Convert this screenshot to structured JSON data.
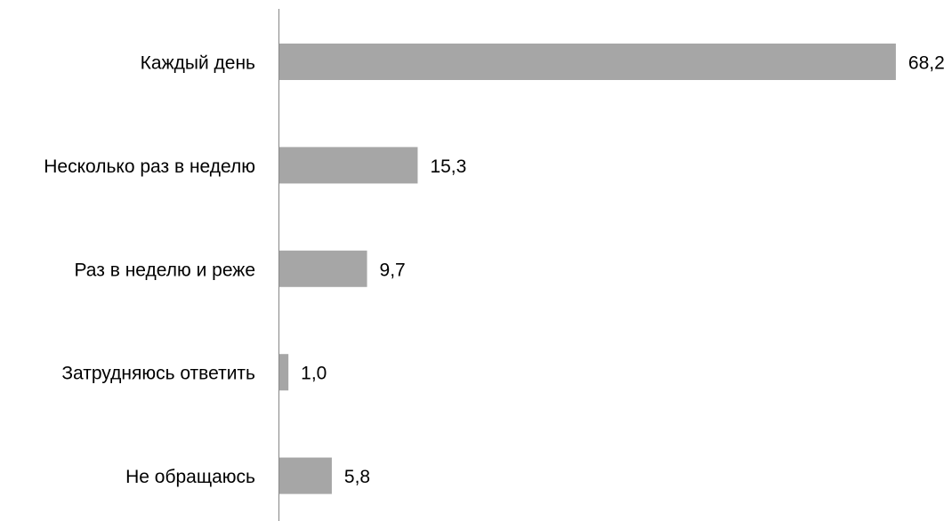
{
  "chart_data": {
    "type": "bar",
    "orientation": "horizontal",
    "categories": [
      "Каждый день",
      "Несколько раз в неделю",
      "Раз в неделю и реже",
      "Затрудняюсь ответить",
      "Не обращаюсь"
    ],
    "values": [
      68.2,
      15.3,
      9.7,
      1.0,
      5.8
    ],
    "data_labels": [
      "68,2",
      "15,3",
      "9,7",
      "1,0",
      "5,8"
    ],
    "grid": false,
    "legend": "none"
  },
  "colors": {
    "bar": "#a6a6a6",
    "axis": "#868686",
    "text": "#000000",
    "background": "#ffffff"
  }
}
